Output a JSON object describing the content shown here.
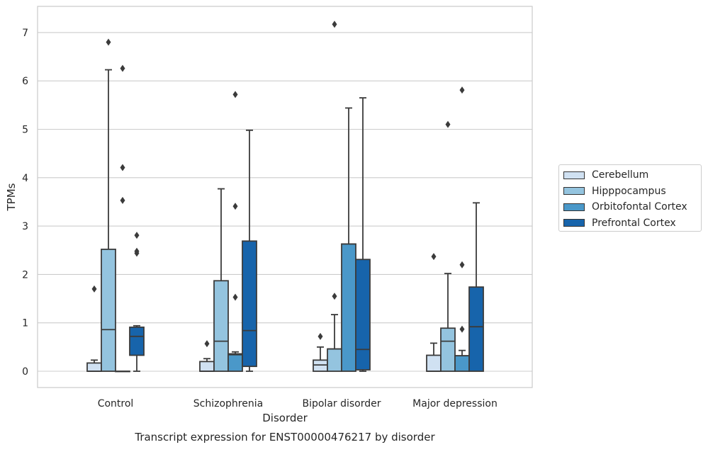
{
  "chart_data": {
    "type": "box",
    "title": "Transcript expression for ENST00000476217 by disorder",
    "xlabel": "Disorder",
    "ylabel": "TPMs",
    "ylim": [
      -0.35,
      7.55
    ],
    "yticks": [
      0,
      1,
      2,
      3,
      4,
      5,
      6,
      7
    ],
    "grid": "horizontal",
    "legend_position": "right",
    "categories": [
      "Control",
      "Schizophrenia",
      "Bipolar disorder",
      "Major depression"
    ],
    "series": [
      {
        "name": "Cerebellum",
        "color": "#d0e1f2",
        "boxes": [
          {
            "whisker_low": 0.0,
            "q1": 0.0,
            "median": 0.0,
            "q3": 0.17,
            "whisker_high": 0.23,
            "outliers": [
              1.7
            ]
          },
          {
            "whisker_low": 0.0,
            "q1": 0.0,
            "median": 0.0,
            "q3": 0.2,
            "whisker_high": 0.26,
            "outliers": [
              0.57
            ]
          },
          {
            "whisker_low": 0.0,
            "q1": 0.0,
            "median": 0.13,
            "q3": 0.23,
            "whisker_high": 0.5,
            "outliers": [
              0.72
            ]
          },
          {
            "whisker_low": 0.0,
            "q1": 0.0,
            "median": 0.0,
            "q3": 0.33,
            "whisker_high": 0.58,
            "outliers": [
              2.37
            ]
          }
        ]
      },
      {
        "name": "Hipppocampus",
        "color": "#94c4df",
        "boxes": [
          {
            "whisker_low": 0.0,
            "q1": 0.0,
            "median": 0.86,
            "q3": 2.52,
            "whisker_high": 6.23,
            "outliers": [
              6.8
            ]
          },
          {
            "whisker_low": 0.0,
            "q1": 0.0,
            "median": 0.62,
            "q3": 1.87,
            "whisker_high": 3.77,
            "outliers": []
          },
          {
            "whisker_low": 0.0,
            "q1": 0.0,
            "median": 0.46,
            "q3": 0.46,
            "whisker_high": 1.17,
            "outliers": [
              1.55,
              7.17
            ]
          },
          {
            "whisker_low": 0.0,
            "q1": 0.0,
            "median": 0.62,
            "q3": 0.89,
            "whisker_high": 2.02,
            "outliers": [
              5.1
            ]
          }
        ]
      },
      {
        "name": "Orbitofontal Cortex",
        "color": "#4a98c9",
        "boxes": [
          {
            "whisker_low": 0.0,
            "q1": 0.0,
            "median": 0.0,
            "q3": 0.0,
            "whisker_high": 0.0,
            "outliers": [
              6.26,
              4.21,
              3.53
            ]
          },
          {
            "whisker_low": 0.0,
            "q1": 0.0,
            "median": 0.34,
            "q3": 0.36,
            "whisker_high": 0.4,
            "outliers": [
              5.72,
              3.41,
              1.53
            ]
          },
          {
            "whisker_low": 0.0,
            "q1": 0.0,
            "median": 2.63,
            "q3": 2.63,
            "whisker_high": 5.44,
            "outliers": []
          },
          {
            "whisker_low": 0.0,
            "q1": 0.0,
            "median": 0.32,
            "q3": 0.32,
            "whisker_high": 0.43,
            "outliers": [
              5.81,
              2.2,
              0.87
            ]
          }
        ]
      },
      {
        "name": "Prefrontal Cortex",
        "color": "#1764ab",
        "boxes": [
          {
            "whisker_low": 0.0,
            "q1": 0.33,
            "median": 0.72,
            "q3": 0.91,
            "whisker_high": 0.94,
            "outliers": [
              2.81,
              2.48,
              2.44
            ]
          },
          {
            "whisker_low": 0.0,
            "q1": 0.1,
            "median": 0.84,
            "q3": 2.69,
            "whisker_high": 4.98,
            "outliers": []
          },
          {
            "whisker_low": 0.0,
            "q1": 0.03,
            "median": 0.45,
            "q3": 2.31,
            "whisker_high": 5.65,
            "outliers": []
          },
          {
            "whisker_low": 0.0,
            "q1": 0.0,
            "median": 0.92,
            "q3": 1.74,
            "whisker_high": 3.48,
            "outliers": []
          }
        ]
      }
    ]
  }
}
